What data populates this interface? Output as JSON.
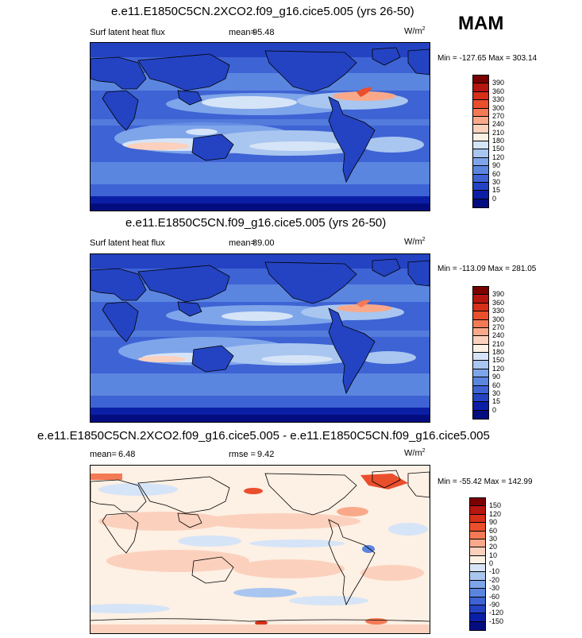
{
  "season": "MAM",
  "units_base": "W/m",
  "units_exp": "2",
  "panels": [
    {
      "title": "e.e11.E1850C5CN.2XCO2.f09_g16.cice5.005 (yrs 26-50)",
      "variable": "Surf latent heat flux",
      "stat_label": "mean=",
      "stat_value": "95.48",
      "minmax": "Min = -127.65 Max = 303.14",
      "levels": [
        "390",
        "360",
        "330",
        "300",
        "270",
        "240",
        "210",
        "180",
        "150",
        "120",
        "90",
        "60",
        "30",
        "15",
        "0"
      ],
      "colors": [
        "#7a0000",
        "#b5160f",
        "#d63018",
        "#ea4f2d",
        "#f47a55",
        "#f9a98a",
        "#fbd1bd",
        "#fdf0e4",
        "#d6e4f7",
        "#a9c6f0",
        "#7ea5ea",
        "#5b86e0",
        "#3e63d4",
        "#2443c2",
        "#0b1fa6",
        "#040d80"
      ]
    },
    {
      "title": "e.e11.E1850C5CN.f09_g16.cice5.005 (yrs 26-50)",
      "variable": "Surf latent heat flux",
      "stat_label": "mean=",
      "stat_value": "89.00",
      "minmax": "Min = -113.09 Max = 281.05",
      "levels": [
        "390",
        "360",
        "330",
        "300",
        "270",
        "240",
        "210",
        "180",
        "150",
        "120",
        "90",
        "60",
        "30",
        "15",
        "0"
      ],
      "colors": [
        "#7a0000",
        "#b5160f",
        "#d63018",
        "#ea4f2d",
        "#f47a55",
        "#f9a98a",
        "#fbd1bd",
        "#fdf0e4",
        "#d6e4f7",
        "#a9c6f0",
        "#7ea5ea",
        "#5b86e0",
        "#3e63d4",
        "#2443c2",
        "#0b1fa6",
        "#040d80"
      ]
    },
    {
      "title": "e.e11.E1850C5CN.2XCO2.f09_g16.cice5.005 - e.e11.E1850C5CN.f09_g16.cice5.005",
      "variable": "",
      "stat_label": "mean=",
      "stat_value": "6.48",
      "stat2_label": "rmse =",
      "stat2_value": "9.42",
      "minmax": "Min = -55.42 Max = 142.99",
      "levels": [
        "150",
        "120",
        "90",
        "60",
        "30",
        "20",
        "10",
        "0",
        "-10",
        "-20",
        "-30",
        "-60",
        "-90",
        "-120",
        "-150"
      ],
      "colors": [
        "#7a0000",
        "#b5160f",
        "#d63018",
        "#ea4f2d",
        "#f47a55",
        "#f9a98a",
        "#fbd1bd",
        "#fdf0e4",
        "#d6e4f7",
        "#a9c6f0",
        "#7ea5ea",
        "#5b86e0",
        "#3e63d4",
        "#2443c2",
        "#0b1fa6",
        "#040d80"
      ]
    }
  ]
}
